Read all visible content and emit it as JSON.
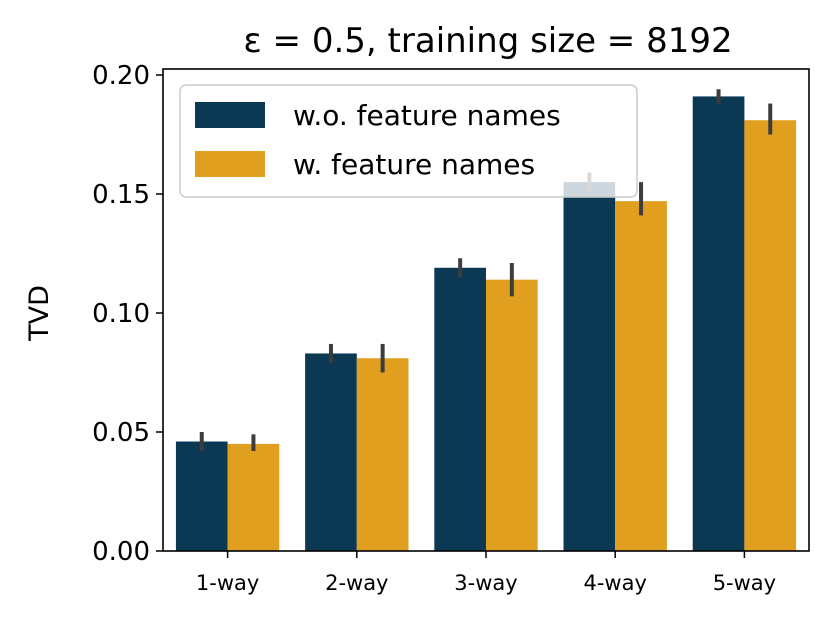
{
  "chart_data": {
    "type": "bar",
    "title": "ε = 0.5, training size = 8192",
    "xlabel": "",
    "ylabel": "TVD",
    "categories": [
      "1-way",
      "2-way",
      "3-way",
      "4-way",
      "5-way"
    ],
    "ylim": [
      0,
      0.2
    ],
    "yticks": [
      "0.00",
      "0.05",
      "0.10",
      "0.15",
      "0.20"
    ],
    "grid": false,
    "legend_position": "top-left",
    "series": [
      {
        "name": "w.o. feature names",
        "color": "#0b3954",
        "values": [
          0.046,
          0.083,
          0.119,
          0.155,
          0.191
        ],
        "error_low": [
          0.042,
          0.079,
          0.115,
          0.151,
          0.188
        ],
        "error_high": [
          0.05,
          0.087,
          0.123,
          0.159,
          0.194
        ]
      },
      {
        "name": "w. feature names",
        "color": "#e09f1f",
        "values": [
          0.045,
          0.081,
          0.114,
          0.147,
          0.181
        ],
        "error_low": [
          0.042,
          0.075,
          0.107,
          0.141,
          0.175
        ],
        "error_high": [
          0.049,
          0.087,
          0.121,
          0.155,
          0.188
        ]
      }
    ]
  }
}
